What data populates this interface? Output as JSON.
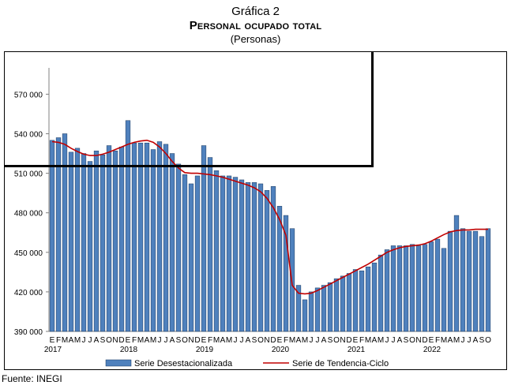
{
  "header": {
    "title_line1": "Gráfica 2",
    "title_line2": "Personal ocupado total",
    "title_line3": "(Personas)"
  },
  "source_note": "Fuente: INEGI",
  "chart_data": {
    "type": "bar",
    "title": "Personal ocupado total",
    "subtitle": "(Personas)",
    "xlabel": "",
    "ylabel": "",
    "ylim": [
      390000,
      590000
    ],
    "yticks": [
      390000,
      420000,
      450000,
      480000,
      510000,
      540000,
      570000
    ],
    "ytick_labels": [
      "390 000",
      "420 000",
      "450 000",
      "480 000",
      "510 000",
      "540 000",
      "570 000"
    ],
    "grid": false,
    "legend_position": "bottom",
    "month_letters": [
      "E",
      "F",
      "M",
      "A",
      "M",
      "J",
      "J",
      "A",
      "S",
      "O",
      "N",
      "D"
    ],
    "years": [
      "2017",
      "2018",
      "2019",
      "2020",
      "2021",
      "2022"
    ],
    "series": [
      {
        "name": "Serie Desestacionalizada",
        "type": "bar",
        "color": "#4f81bd",
        "values": [
          535000,
          537000,
          540000,
          526000,
          529000,
          525000,
          519000,
          527000,
          524000,
          531000,
          527000,
          530000,
          550000,
          533000,
          533000,
          533000,
          528000,
          534000,
          532000,
          525000,
          517000,
          509000,
          502000,
          508000,
          531000,
          522000,
          512000,
          508000,
          508000,
          507000,
          505000,
          503000,
          503000,
          502000,
          497000,
          500000,
          485000,
          478000,
          468000,
          425000,
          414000,
          420000,
          423000,
          425000,
          427000,
          430000,
          432000,
          434000,
          437000,
          436000,
          439000,
          442000,
          448000,
          452000,
          455000,
          455000,
          455000,
          456000,
          455000,
          456000,
          458000,
          460000,
          453000,
          466000,
          478000,
          468000,
          466000,
          466000,
          462000,
          468000
        ]
      },
      {
        "name": "Serie de Tendencia-Ciclo",
        "type": "line",
        "color": "#c00000",
        "values": [
          534000,
          533500,
          532000,
          529000,
          526500,
          524500,
          523500,
          523500,
          524500,
          526000,
          528000,
          530000,
          532000,
          533500,
          534500,
          535000,
          533500,
          530000,
          525000,
          519000,
          514000,
          510500,
          510000,
          510000,
          509500,
          509000,
          508000,
          507000,
          505500,
          504000,
          502500,
          501000,
          499000,
          496000,
          491000,
          484000,
          475000,
          463000,
          425000,
          419000,
          418500,
          419000,
          421000,
          423500,
          426000,
          428500,
          431000,
          433500,
          436000,
          438500,
          441000,
          444000,
          447000,
          450000,
          452000,
          453500,
          454500,
          455000,
          455500,
          456500,
          458500,
          461000,
          463500,
          465500,
          466500,
          467000,
          467000,
          467500,
          467500,
          467500
        ]
      }
    ]
  }
}
